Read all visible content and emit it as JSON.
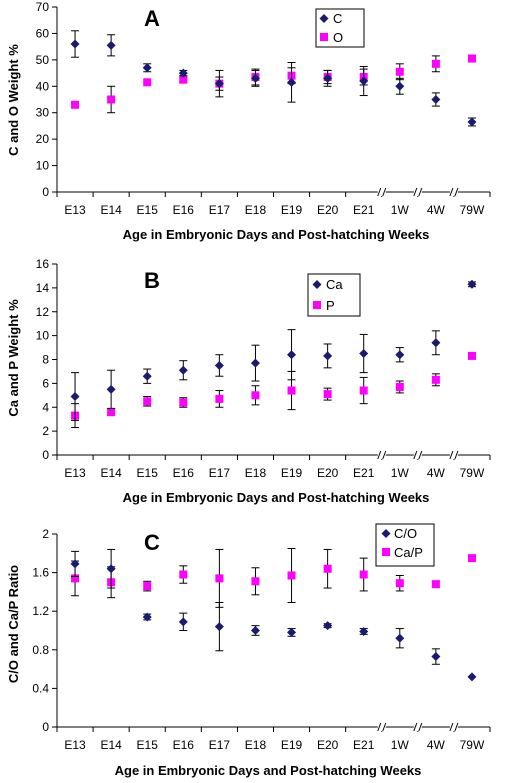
{
  "colors": {
    "navy": "#1a1a6e",
    "magenta": "#ff00ff",
    "axis": "#000000"
  },
  "chart_data": [
    {
      "type": "scatter",
      "panel_letter": "A",
      "categories": [
        "E13",
        "E14",
        "E15",
        "E16",
        "E17",
        "E18",
        "E19",
        "E20",
        "E21",
        "1W",
        "4W",
        "79W"
      ],
      "ylabel": "C and O Weight %",
      "xlabel": "Age in Embryonic Days and Post-hatching Weeks",
      "ylim": [
        0,
        70
      ],
      "yticks": [
        0,
        10,
        20,
        30,
        40,
        50,
        60,
        70
      ],
      "legend": "top-right",
      "series": [
        {
          "name": "C",
          "marker": "diamond",
          "color": "#1a1a6e",
          "values": [
            56,
            55.5,
            47,
            45,
            41,
            43,
            41.5,
            43,
            42,
            40,
            35,
            26.5
          ],
          "errors": [
            5,
            4,
            1.5,
            1,
            5,
            3,
            7.5,
            3,
            5.5,
            3,
            2.5,
            1.5
          ]
        },
        {
          "name": "O",
          "marker": "square",
          "color": "#ff00ff",
          "values": [
            33,
            35,
            41.5,
            42.5,
            41,
            43.5,
            44,
            43.5,
            43.5,
            45.5,
            48.5,
            50.5
          ],
          "errors": [
            0,
            5,
            0,
            1,
            2.5,
            3,
            3,
            2.5,
            3,
            3,
            3,
            1
          ]
        }
      ]
    },
    {
      "type": "scatter",
      "panel_letter": "B",
      "categories": [
        "E13",
        "E14",
        "E15",
        "E16",
        "E17",
        "E18",
        "E19",
        "E20",
        "E21",
        "1W",
        "4W",
        "79W"
      ],
      "ylabel": "Ca and P Weight %",
      "xlabel": "Age in Embryonic Days and Post-hatching Weeks",
      "ylim": [
        0,
        16
      ],
      "yticks": [
        0,
        2,
        4,
        6,
        8,
        10,
        12,
        14,
        16
      ],
      "legend": "top-right",
      "series": [
        {
          "name": "Ca",
          "marker": "diamond",
          "color": "#1a1a6e",
          "values": [
            4.9,
            5.5,
            6.6,
            7.1,
            7.5,
            7.7,
            8.4,
            8.3,
            8.5,
            8.4,
            9.4,
            14.3
          ],
          "errors": [
            2,
            1.6,
            0.6,
            0.8,
            0.9,
            1.5,
            2.1,
            1,
            1.6,
            0.6,
            1,
            0.2
          ]
        },
        {
          "name": "P",
          "marker": "square",
          "color": "#ff00ff",
          "values": [
            3.3,
            3.6,
            4.5,
            4.4,
            4.7,
            5,
            5.4,
            5.1,
            5.4,
            5.7,
            6.3,
            8.3
          ],
          "errors": [
            1,
            0.3,
            0.4,
            0.4,
            0.7,
            0.8,
            1.6,
            0.5,
            1.1,
            0.5,
            0.5,
            0
          ]
        }
      ]
    },
    {
      "type": "scatter",
      "panel_letter": "C",
      "categories": [
        "E13",
        "E14",
        "E15",
        "E16",
        "E17",
        "E18",
        "E19",
        "E20",
        "E21",
        "1W",
        "4W",
        "79W"
      ],
      "ylabel": "C/O and Ca/P Ratio",
      "xlabel": "Age in Embryonic Days and Post-hatching Weeks",
      "ylim": [
        0,
        2
      ],
      "yticks": [
        0,
        0.4,
        0.8,
        1.2,
        1.6,
        2
      ],
      "legend": "top-right",
      "series": [
        {
          "name": "C/O",
          "marker": "diamond",
          "color": "#1a1a6e",
          "values": [
            1.69,
            1.64,
            1.14,
            1.09,
            1.04,
            1,
            0.98,
            1.05,
            0.99,
            0.92,
            0.73,
            0.52
          ],
          "errors": [
            0.13,
            0.2,
            0.03,
            0.09,
            0.25,
            0.05,
            0.04,
            0.02,
            0.03,
            0.1,
            0.08,
            0
          ]
        },
        {
          "name": "Ca/P",
          "marker": "square",
          "color": "#ff00ff",
          "values": [
            1.54,
            1.5,
            1.46,
            1.58,
            1.54,
            1.51,
            1.57,
            1.64,
            1.58,
            1.49,
            1.48,
            1.75
          ],
          "errors": [
            0.18,
            0.16,
            0.05,
            0.09,
            0.3,
            0.14,
            0.28,
            0.2,
            0.17,
            0.08,
            0.03,
            0
          ]
        }
      ]
    }
  ]
}
